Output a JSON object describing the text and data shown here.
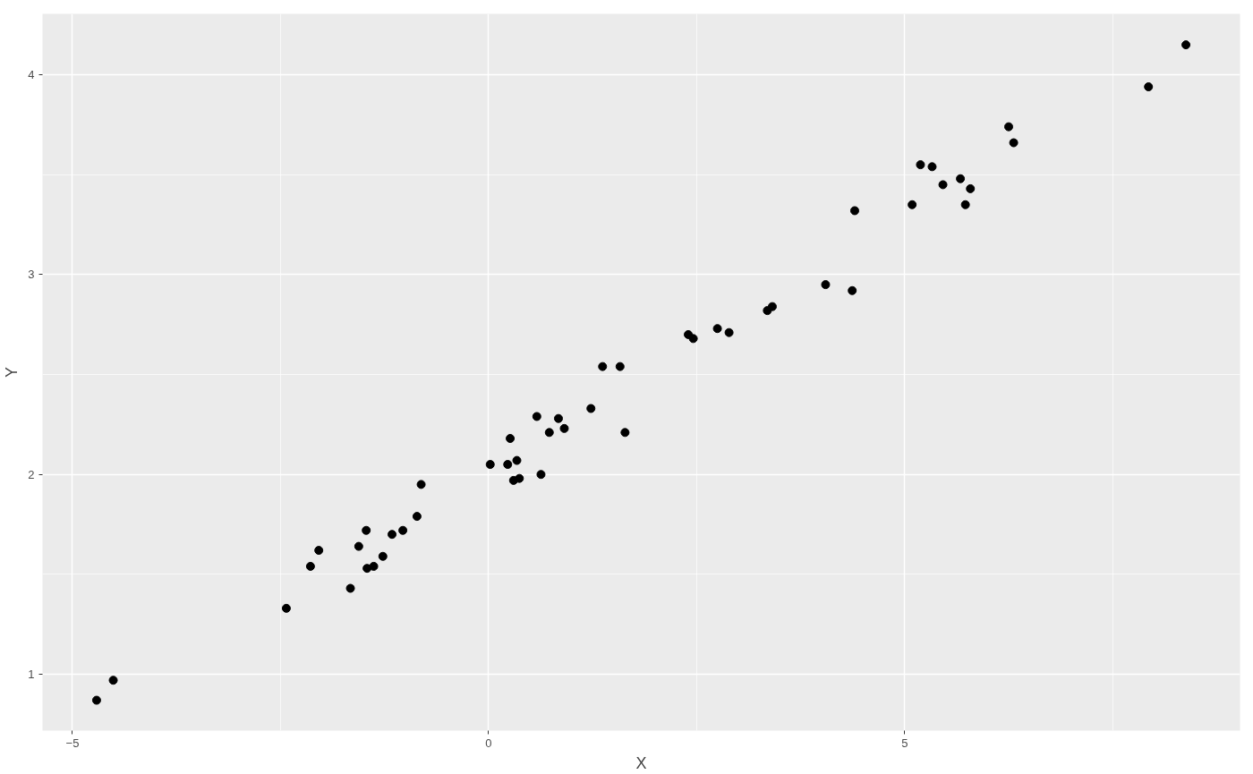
{
  "chart_data": {
    "type": "scatter",
    "xlabel": "X",
    "ylabel": "Y",
    "xlim": [
      -5.36,
      9.03
    ],
    "ylim": [
      0.718,
      4.305
    ],
    "xticks": [
      -5,
      0,
      5
    ],
    "yticks": [
      1,
      2,
      3,
      4
    ],
    "grid": true,
    "marker": "circle",
    "series": [
      {
        "color": "#000000",
        "x": [
          -4.71,
          -4.51,
          -2.43,
          -2.14,
          -2.04,
          -1.66,
          -1.56,
          -1.47,
          -1.46,
          -1.38,
          -1.27,
          -1.16,
          -1.03,
          -0.86,
          -0.81,
          0.02,
          0.23,
          0.26,
          0.3,
          0.34,
          0.37,
          0.58,
          0.63,
          0.73,
          0.84,
          0.91,
          1.23,
          1.37,
          1.58,
          1.64,
          2.4,
          2.46,
          2.75,
          2.89,
          3.35,
          3.41,
          4.05,
          4.37,
          4.4,
          5.09,
          5.19,
          5.33,
          5.46,
          5.67,
          5.73,
          5.79,
          6.25,
          6.31,
          7.93,
          8.38
        ],
        "values": [
          0.87,
          0.97,
          1.33,
          1.54,
          1.62,
          1.43,
          1.64,
          1.72,
          1.53,
          1.54,
          1.59,
          1.7,
          1.72,
          1.79,
          1.95,
          2.05,
          2.05,
          2.18,
          1.97,
          2.07,
          1.98,
          2.29,
          2.0,
          2.21,
          2.28,
          2.23,
          2.33,
          2.54,
          2.54,
          2.21,
          2.7,
          2.68,
          2.73,
          2.71,
          2.82,
          2.84,
          2.95,
          2.92,
          3.32,
          3.35,
          3.55,
          3.54,
          3.45,
          3.48,
          3.35,
          3.43,
          3.74,
          3.66,
          3.94,
          4.15
        ]
      }
    ]
  }
}
